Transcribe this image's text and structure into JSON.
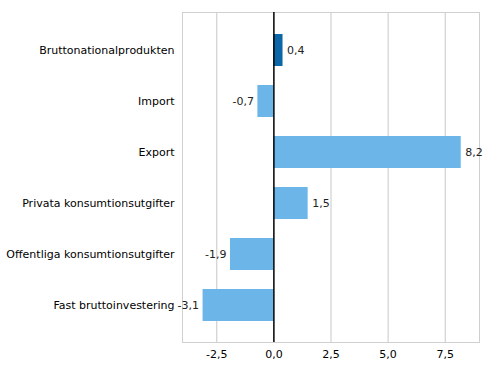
{
  "chart_data": {
    "type": "bar",
    "orientation": "horizontal",
    "categories": [
      "Bruttonationalprodukten",
      "Import",
      "Export",
      "Privata konsumtionsutgifter",
      "Offentliga konsumtionsutgifter",
      "Fast bruttoinvestering"
    ],
    "values": [
      0.4,
      -0.7,
      8.2,
      1.5,
      -1.9,
      -3.1
    ],
    "value_labels": [
      "0,4",
      "-0,7",
      "8,2",
      "1,5",
      "-1,9",
      "-3,1"
    ],
    "colors": [
      "#0b67a7",
      "#6cb5e9",
      "#6cb5e9",
      "#6cb5e9",
      "#6cb5e9",
      "#6cb5e9"
    ],
    "data_labels": true,
    "grid": true,
    "xlim": [
      -4,
      9
    ],
    "xticks": [
      {
        "value": -2.5,
        "label": "-2,5"
      },
      {
        "value": 0,
        "label": "0,0"
      },
      {
        "value": 2.5,
        "label": "2,5"
      },
      {
        "value": 5,
        "label": "5,0"
      },
      {
        "value": 7.5,
        "label": "7,5"
      }
    ]
  }
}
